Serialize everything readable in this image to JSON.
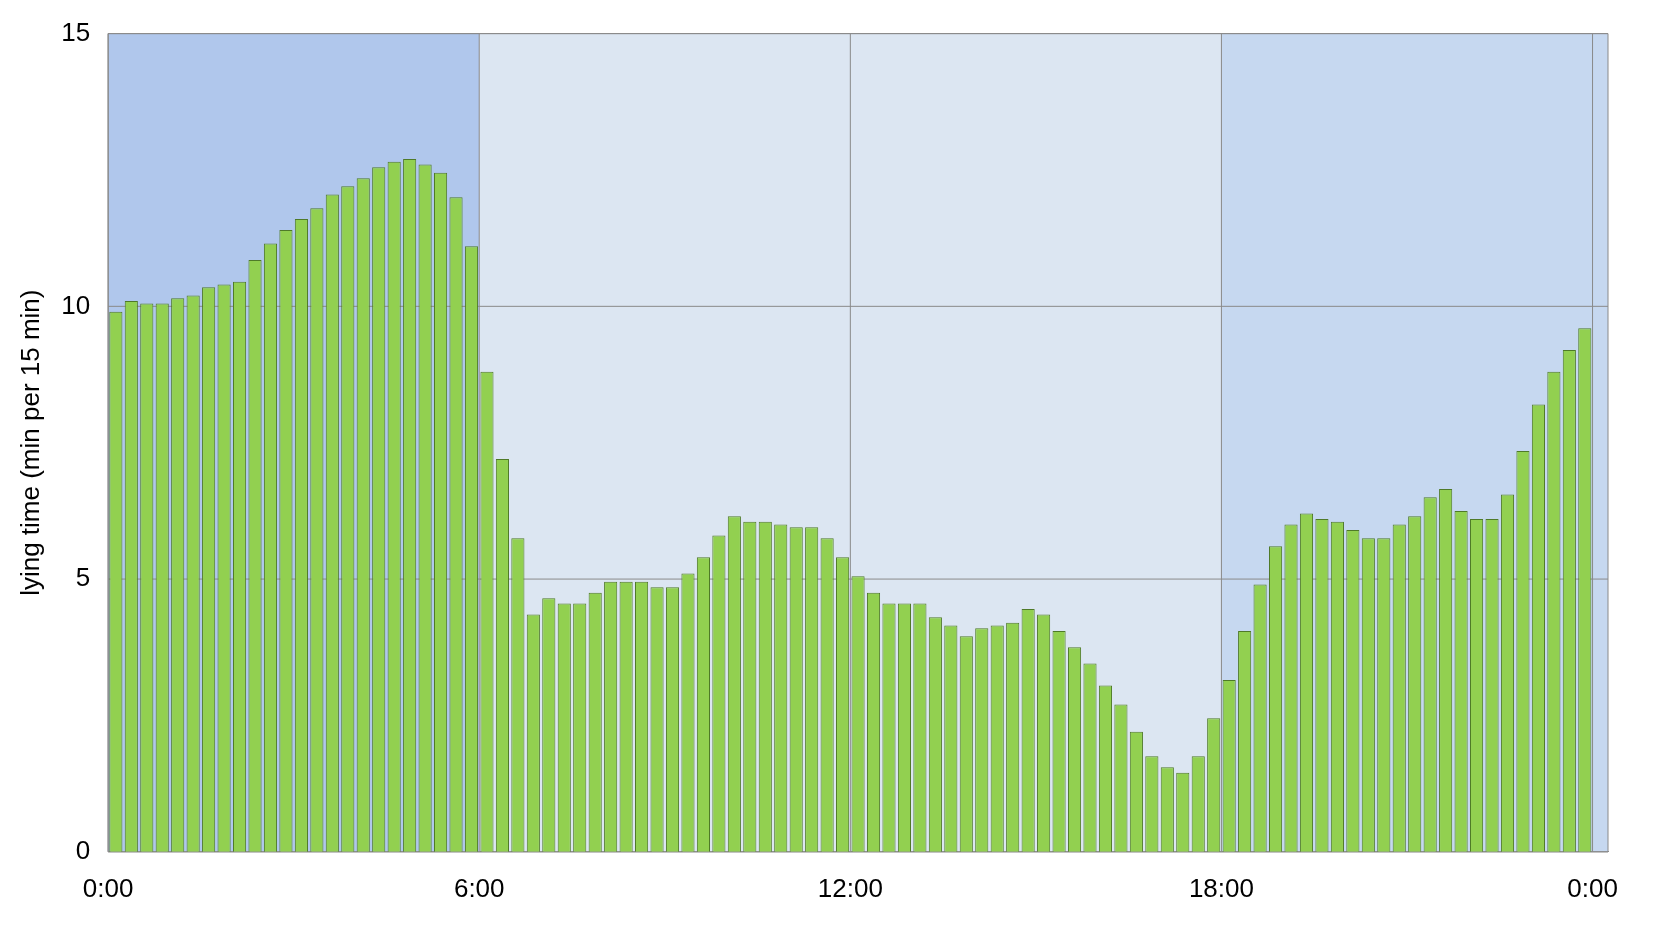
{
  "chart_data": {
    "type": "bar",
    "ylabel": "lying time (min per 15 min)",
    "color": "#92d050",
    "x": [
      0.125,
      0.375,
      0.625,
      0.875,
      1.125,
      1.375,
      1.625,
      1.875,
      2.125,
      2.375,
      2.625,
      2.875,
      3.125,
      3.375,
      3.625,
      3.875,
      4.125,
      4.375,
      4.625,
      4.875,
      5.125,
      5.375,
      5.625,
      5.875,
      6.125,
      6.375,
      6.625,
      6.875,
      7.125,
      7.375,
      7.625,
      7.875,
      8.125,
      8.375,
      8.625,
      8.875,
      9.125,
      9.375,
      9.625,
      9.875,
      10.125,
      10.375,
      10.625,
      10.875,
      11.125,
      11.375,
      11.625,
      11.875,
      12.125,
      12.375,
      12.625,
      12.875,
      13.125,
      13.375,
      13.625,
      13.875,
      14.125,
      14.375,
      14.625,
      14.875,
      15.125,
      15.375,
      15.625,
      15.875,
      16.125,
      16.375,
      16.625,
      16.875,
      17.125,
      17.375,
      17.625,
      17.875,
      18.125,
      18.375,
      18.625,
      18.875,
      19.125,
      19.375,
      19.625,
      19.875,
      20.125,
      20.375,
      20.625,
      20.875,
      21.125,
      21.375,
      21.625,
      21.875,
      22.125,
      22.375,
      22.625,
      22.875,
      23.125,
      23.375,
      23.625,
      23.875
    ],
    "values": [
      9.9,
      10.1,
      10.05,
      10.05,
      10.15,
      10.2,
      10.35,
      10.4,
      10.45,
      10.85,
      11.15,
      11.4,
      11.6,
      11.8,
      12.05,
      12.2,
      12.35,
      12.55,
      12.65,
      12.7,
      12.6,
      12.45,
      12.0,
      11.1,
      8.8,
      7.2,
      5.75,
      4.35,
      4.65,
      4.55,
      4.55,
      4.75,
      4.95,
      4.95,
      4.95,
      4.85,
      4.85,
      5.1,
      5.4,
      5.8,
      6.15,
      6.05,
      6.05,
      6.0,
      5.95,
      5.95,
      5.75,
      5.4,
      5.05,
      4.75,
      4.55,
      4.55,
      4.55,
      4.3,
      4.15,
      3.95,
      4.1,
      4.15,
      4.2,
      4.45,
      4.35,
      4.05,
      3.75,
      3.45,
      3.05,
      2.7,
      2.2,
      1.75,
      1.55,
      1.45,
      1.75,
      2.45,
      3.15,
      4.05,
      4.9,
      5.6,
      6.0,
      6.2,
      6.1,
      6.05,
      5.9,
      5.75,
      5.75,
      6.0,
      6.15,
      6.5,
      6.65,
      6.25,
      6.1,
      6.1,
      6.55,
      7.35,
      8.2,
      8.8,
      9.2,
      9.6
    ],
    "xlim": [
      0,
      24.25
    ],
    "xticks": [
      {
        "value": 0,
        "label": "0:00"
      },
      {
        "value": 6,
        "label": "6:00"
      },
      {
        "value": 12,
        "label": "12:00"
      },
      {
        "value": 18,
        "label": "18:00"
      },
      {
        "value": 24,
        "label": "0:00"
      }
    ],
    "ylim": [
      0,
      15
    ],
    "yticks": [
      0,
      5,
      10,
      15
    ],
    "grid": true,
    "legend": false,
    "bands": [
      {
        "axis": "x",
        "from": 0,
        "to": 6,
        "color": "#b0c7ec"
      },
      {
        "axis": "x",
        "from": 6,
        "to": 18,
        "color": "#dce6f2"
      },
      {
        "axis": "x",
        "from": 18,
        "to": 24.25,
        "color": "#c6d8f0"
      }
    ]
  }
}
